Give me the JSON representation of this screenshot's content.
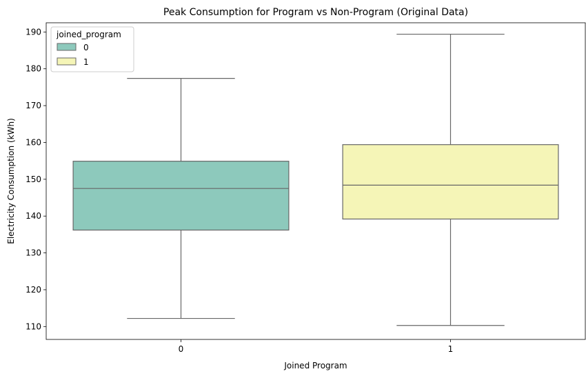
{
  "chart_data": {
    "type": "box",
    "title": "Peak Consumption for Program vs Non-Program (Original Data)",
    "xlabel": "Joined Program",
    "ylabel": "Electricity Consumption (kWh)",
    "categories": [
      "0",
      "1"
    ],
    "ylim": [
      106.5,
      192.5
    ],
    "yticks": [
      110,
      120,
      130,
      140,
      150,
      160,
      170,
      180,
      190
    ],
    "grid": false,
    "legend": {
      "title": "joined_program",
      "placement": "top-left",
      "entries": [
        "0",
        "1"
      ]
    },
    "series": [
      {
        "category": "0",
        "min": 112.2,
        "q1": 136.2,
        "median": 147.5,
        "q3": 154.9,
        "max": 177.4,
        "color": "#8dc9bc"
      },
      {
        "category": "1",
        "min": 110.3,
        "q1": 139.2,
        "median": 148.4,
        "q3": 159.4,
        "max": 189.4,
        "color": "#f5f5b7"
      }
    ],
    "line_color": "#666666"
  }
}
